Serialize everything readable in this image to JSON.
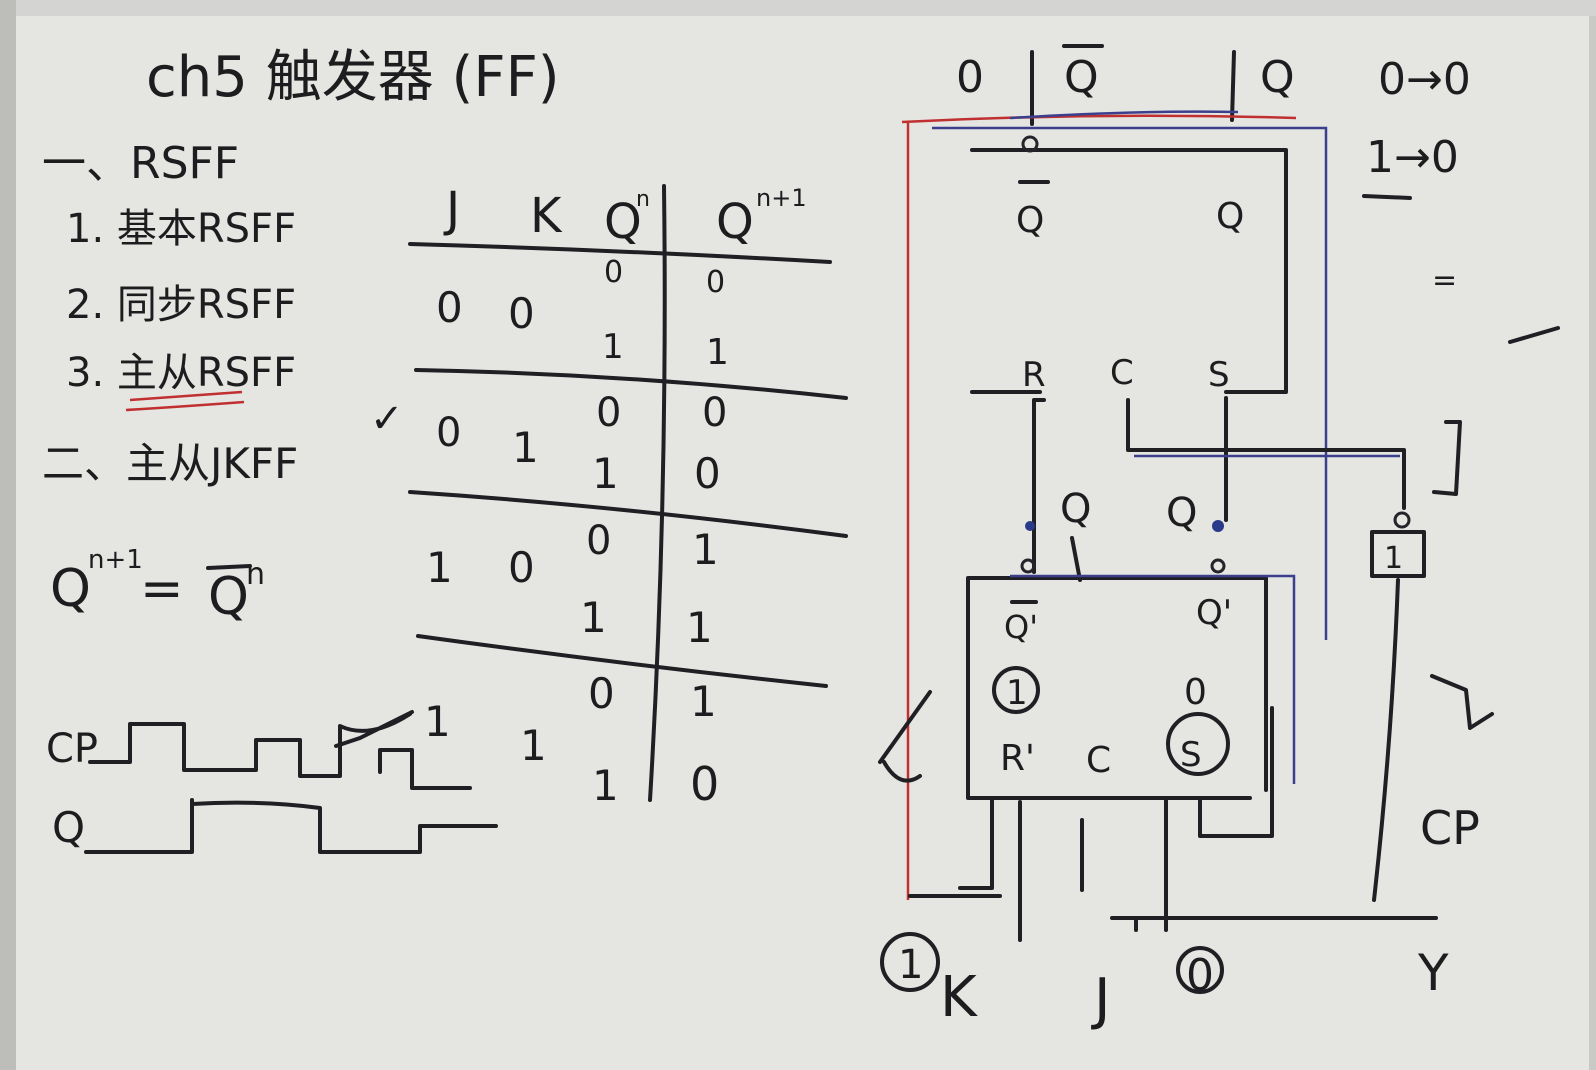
{
  "title": "ch5 触发器 (FF)",
  "outline": {
    "section1": "一、RSFF",
    "items": [
      "1. 基本RSFF",
      "2. 同步RSFF",
      "3. 主从RSFF"
    ],
    "section2": "二、主从JKFF",
    "check": "✓"
  },
  "equation": {
    "lhs": "Q",
    "lhs_sup": "n+1",
    "eq": "=",
    "rhs": "Q",
    "rhs_sup": "n"
  },
  "truth_table": {
    "headers": [
      "J",
      "K",
      "Q",
      "n",
      "Q",
      "n+1"
    ],
    "rows": [
      {
        "j": "0",
        "k": "0",
        "qn": [
          "0",
          "1"
        ],
        "qn1": [
          "0",
          "1"
        ]
      },
      {
        "j": "0",
        "k": "1",
        "qn": [
          "0",
          "1"
        ],
        "qn1": [
          "0",
          "0"
        ]
      },
      {
        "j": "1",
        "k": "0",
        "qn": [
          "0",
          "1"
        ],
        "qn1": [
          "1",
          "1"
        ]
      },
      {
        "j": "1",
        "k": "1",
        "qn": [
          "0",
          "1"
        ],
        "qn1": [
          "1",
          "0"
        ]
      }
    ]
  },
  "waveform": {
    "cp_label": "CP",
    "q_label": "Q"
  },
  "circuit": {
    "top_labels": [
      "0",
      "Q",
      "Q"
    ],
    "top_right_notes": [
      "0→0",
      "1→0"
    ],
    "master": {
      "qbar": "Q",
      "q": "Q",
      "r": "R",
      "c": "C",
      "s": "S"
    },
    "slave": {
      "qbar": "Q'",
      "q": "Q'",
      "r": "R'",
      "c": "C",
      "s": "S",
      "circled_left": "1",
      "circled_right": "0"
    },
    "mid_labels": [
      "Q",
      "Q"
    ],
    "inverter": "1",
    "cp_label": "CP",
    "inputs": [
      "K",
      "J",
      "Y"
    ],
    "circled_inputs": [
      "1",
      "0"
    ]
  }
}
